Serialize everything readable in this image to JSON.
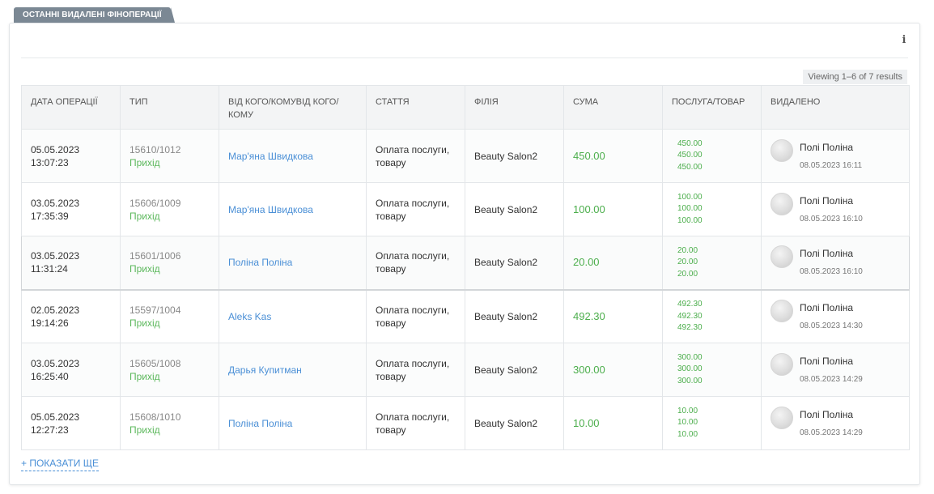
{
  "tab_label": "ОСТАННІ ВИДАЛЕНІ ФІНОПЕРАЦІЇ",
  "info_icon": "info-icon",
  "summary": "Viewing 1–6 of 7 results",
  "columns": [
    "ДАТА ОПЕРАЦІЇ",
    "ТИП",
    "ВІД КОГО/КОМУВІД КОГО/КОМУ",
    "СТАТТЯ",
    "ФІЛІЯ",
    "СУМА",
    "ПОСЛУГА/ТОВАР",
    "ВИДАЛЕНО"
  ],
  "rows": [
    {
      "date": "05.05.2023",
      "time": "13:07:23",
      "number": "15610/1012",
      "type": "Прихід",
      "counterparty": "Мар'яна Швидкова",
      "article": "Оплата послуги, товару",
      "branch": "Beauty Salon2",
      "amount": "450.00",
      "items": [
        "450.00",
        "450.00",
        "450.00"
      ],
      "deleted_by": "Полі Поліна",
      "deleted_at": "08.05.2023 16:11"
    },
    {
      "date": "03.05.2023",
      "time": "17:35:39",
      "number": "15606/1009",
      "type": "Прихід",
      "counterparty": "Мар'яна Швидкова",
      "article": "Оплата послуги, товару",
      "branch": "Beauty Salon2",
      "amount": "100.00",
      "items": [
        "100.00",
        "100.00",
        "100.00"
      ],
      "deleted_by": "Полі Поліна",
      "deleted_at": "08.05.2023 16:10"
    },
    {
      "date": "03.05.2023",
      "time": "11:31:24",
      "number": "15601/1006",
      "type": "Прихід",
      "counterparty": "Поліна Поліна",
      "article": "Оплата послуги, товару",
      "branch": "Beauty Salon2",
      "amount": "20.00",
      "items": [
        "20.00",
        "20.00",
        "20.00"
      ],
      "deleted_by": "Полі Поліна",
      "deleted_at": "08.05.2023 16:10"
    },
    {
      "date": "02.05.2023",
      "time": "19:14:26",
      "number": "15597/1004",
      "type": "Прихід",
      "counterparty": "Aleks Kas",
      "article": "Оплата послуги, товару",
      "branch": "Beauty Salon2",
      "amount": "492.30",
      "items": [
        "492.30",
        "492.30",
        "492.30"
      ],
      "deleted_by": "Полі Поліна",
      "deleted_at": "08.05.2023 14:30"
    },
    {
      "date": "03.05.2023",
      "time": "16:25:40",
      "number": "15605/1008",
      "type": "Прихід",
      "counterparty": "Дарья Купитман",
      "article": "Оплата послуги, товару",
      "branch": "Beauty Salon2",
      "amount": "300.00",
      "items": [
        "300.00",
        "300.00",
        "300.00"
      ],
      "deleted_by": "Полі Поліна",
      "deleted_at": "08.05.2023 14:29"
    },
    {
      "date": "05.05.2023",
      "time": "12:27:23",
      "number": "15608/1010",
      "type": "Прихід",
      "counterparty": "Поліна Поліна",
      "article": "Оплата послуги, товару",
      "branch": "Beauty Salon2",
      "amount": "10.00",
      "items": [
        "10.00",
        "10.00",
        "10.00"
      ],
      "deleted_by": "Полі Поліна",
      "deleted_at": "08.05.2023 14:29"
    }
  ],
  "show_more": "+ ПОКАЗАТИ ЩЕ",
  "colors": {
    "accent_link": "#4a8fd6",
    "income_green": "#5cb85c",
    "tab_bg": "#7b8894"
  }
}
